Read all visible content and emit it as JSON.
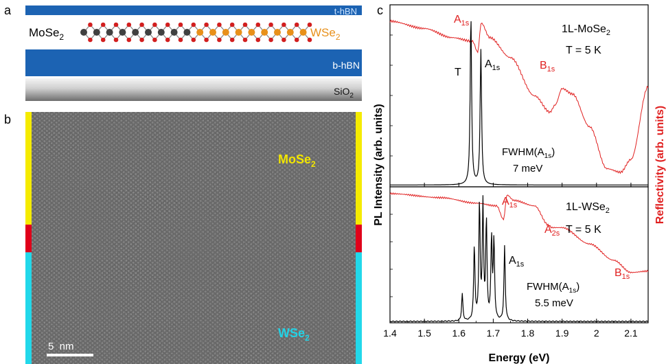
{
  "panels": {
    "a": "a",
    "b": "b",
    "c": "c"
  },
  "structure": {
    "layers": [
      {
        "name": "t-hBN",
        "label": "t-hBN",
        "color": "#1c63b3"
      },
      {
        "name": "b-hBN",
        "label": "b-hBN",
        "color": "#1c63b3"
      },
      {
        "name": "SiO2",
        "label_main": "SiO",
        "label_sub": "2"
      }
    ],
    "left_label_main": "MoSe",
    "left_label_sub": "2",
    "right_label_main": "WSe",
    "right_label_sub": "2",
    "colors": {
      "mo": "#404040",
      "w": "#e8901a",
      "se": "#d21f1f"
    }
  },
  "micrograph": {
    "top_label_main": "MoSe",
    "top_label_sub": "2",
    "top_label_color": "#f2e600",
    "bottom_label_main": "WSe",
    "bottom_label_sub": "2",
    "bottom_label_color": "#22d3e6",
    "scale_bar": "5  nm",
    "side_segments": [
      {
        "region": "MoSe2",
        "color": "#f5eb00",
        "fraction": 0.447
      },
      {
        "region": "interface",
        "color": "#e0001a",
        "fraction": 0.11
      },
      {
        "region": "WSe2",
        "color": "#22d8ea",
        "fraction": 0.443
      }
    ]
  },
  "chart_data": [
    {
      "type": "line",
      "panel": "c-top",
      "xlabel": "Energy (eV)",
      "ylabel_left": "PL Intensity (arb. units)",
      "ylabel_right": "Reflectivity (arb. units)",
      "xlim": [
        1.4,
        2.15
      ],
      "xticks": [
        "1.4",
        "1.5",
        "1.6",
        "1.7",
        "1.8",
        "1.9",
        "2",
        "2.1"
      ],
      "sample": "1L-MoSe",
      "sample_sub": "2",
      "temperature": "T = 5 K",
      "fwhm_main": "FWHM(A",
      "fwhm_sub": "1s",
      "fwhm_close": ")",
      "fwhm_value": "7 meV",
      "series": [
        {
          "color": "#000000",
          "peaks": [
            {
              "x": 1.635,
              "height": 0.93,
              "label": "T"
            },
            {
              "x": 1.664,
              "height": 0.74,
              "label": "A1s"
            }
          ]
        },
        {
          "color": "#e02020",
          "points": [
            [
              1.4,
              0.91
            ],
            [
              1.5,
              0.87
            ],
            [
              1.58,
              0.82
            ],
            [
              1.64,
              0.8
            ],
            [
              1.655,
              0.74
            ],
            [
              1.665,
              0.9
            ],
            [
              1.69,
              0.82
            ],
            [
              1.75,
              0.71
            ],
            [
              1.82,
              0.5
            ],
            [
              1.865,
              0.41
            ],
            [
              1.88,
              0.45
            ],
            [
              1.9,
              0.54
            ],
            [
              1.93,
              0.51
            ],
            [
              1.98,
              0.33
            ],
            [
              2.03,
              0.1
            ],
            [
              2.07,
              0.08
            ],
            [
              2.1,
              0.15
            ],
            [
              2.15,
              0.55
            ]
          ]
        }
      ],
      "annotations": [
        {
          "main": "A",
          "sub": "1s",
          "color": "#e02020"
        },
        {
          "main": "T",
          "sub": "",
          "color": "#000000"
        },
        {
          "main": "A",
          "sub": "1s",
          "color": "#000000"
        },
        {
          "main": "B",
          "sub": "1s",
          "color": "#e02020"
        }
      ]
    },
    {
      "type": "line",
      "panel": "c-bottom",
      "sample": "1L-WSe",
      "sample_sub": "2",
      "temperature": "T = 5 K",
      "fwhm_main": "FWHM(A",
      "fwhm_sub": "1s",
      "fwhm_close": ")",
      "fwhm_value": "5.5 meV",
      "series": [
        {
          "color": "#000000",
          "peaks": [
            {
              "x": 1.61,
              "height": 0.2
            },
            {
              "x": 1.645,
              "height": 0.55
            },
            {
              "x": 1.66,
              "height": 0.86
            },
            {
              "x": 1.67,
              "height": 0.84
            },
            {
              "x": 1.68,
              "height": 0.73
            },
            {
              "x": 1.695,
              "height": 0.6
            },
            {
              "x": 1.702,
              "height": 0.58
            },
            {
              "x": 1.733,
              "height": 0.55,
              "label": "A1s"
            }
          ]
        },
        {
          "color": "#e02020",
          "points": [
            [
              1.4,
              0.95
            ],
            [
              1.55,
              0.92
            ],
            [
              1.65,
              0.88
            ],
            [
              1.71,
              0.86
            ],
            [
              1.73,
              0.76
            ],
            [
              1.74,
              0.94
            ],
            [
              1.76,
              0.9
            ],
            [
              1.82,
              0.86
            ],
            [
              1.86,
              0.72
            ],
            [
              1.87,
              0.7
            ],
            [
              1.9,
              0.7
            ],
            [
              1.98,
              0.58
            ],
            [
              2.05,
              0.46
            ],
            [
              2.1,
              0.37
            ],
            [
              2.15,
              0.38
            ]
          ]
        }
      ],
      "annotations": [
        {
          "main": "A",
          "sub": "1s",
          "color": "#e02020"
        },
        {
          "main": "A",
          "sub": "2s",
          "color": "#e02020"
        },
        {
          "main": "A",
          "sub": "1s",
          "color": "#000000"
        },
        {
          "main": "B",
          "sub": "1s",
          "color": "#e02020"
        }
      ]
    }
  ]
}
